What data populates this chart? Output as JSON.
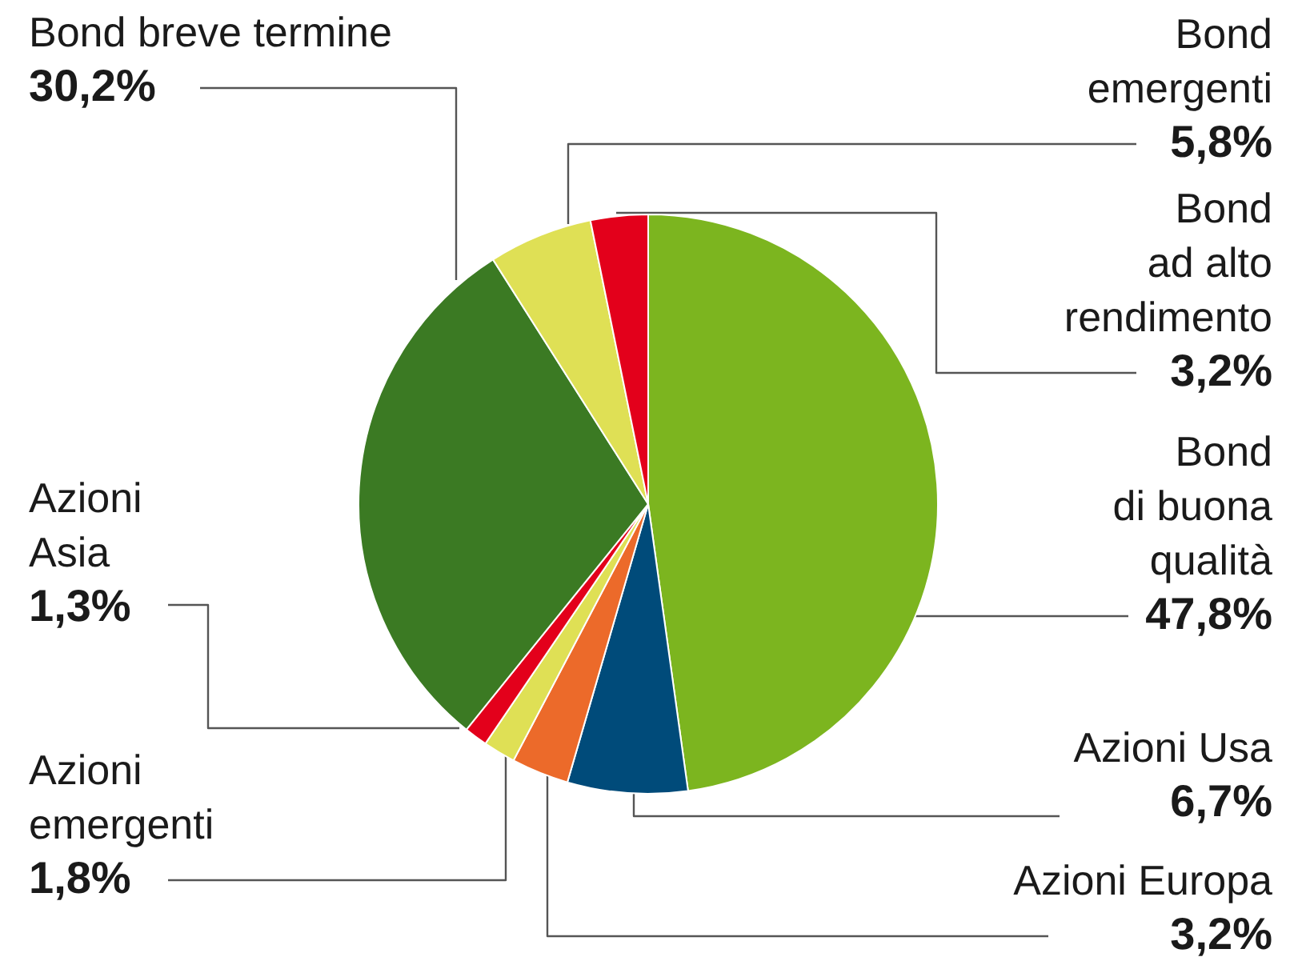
{
  "chart_data": {
    "type": "pie",
    "categories": [
      "Bond\ndi buona\nqualità",
      "Azioni Usa",
      "Azioni Europa",
      "Azioni\nemergenti",
      "Azioni\nAsia",
      "Bond breve termine",
      "Bond\nemergenti",
      "Bond\nad alto\nrendimento"
    ],
    "values": [
      47.8,
      6.7,
      3.2,
      1.8,
      1.3,
      30.2,
      5.8,
      3.2
    ],
    "colors": [
      "#7cb51f",
      "#004b7a",
      "#ec6a2a",
      "#dfe055",
      "#e3001b",
      "#3b7a23",
      "#dfe055",
      "#e3001b"
    ],
    "value_labels": [
      "47,8%",
      "6,7%",
      "3,2%",
      "1,8%",
      "1,3%",
      "30,2%",
      "5,8%",
      "3,2%"
    ]
  }
}
